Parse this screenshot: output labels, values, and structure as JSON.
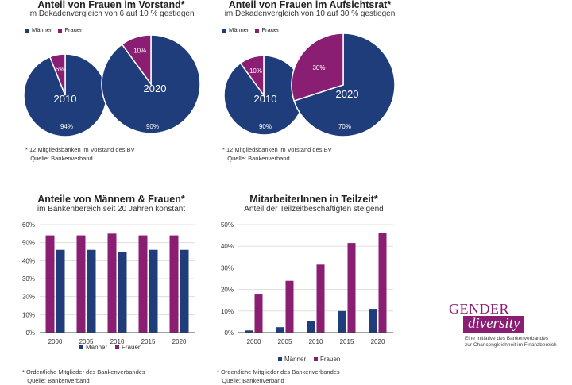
{
  "colors": {
    "maenner": "#1f3d7a",
    "frauen": "#8a1e73",
    "grid": "#d9d9d9",
    "axis": "#444444"
  },
  "chart_data": [
    {
      "type": "pie",
      "title": "Anteil von Frauen im Vorstand*",
      "subtitle": "im Dekadenvergleich von 6 auf 10 % gestiegen",
      "legend": [
        "Männer",
        "Frauen"
      ],
      "pies": [
        {
          "year": "2010",
          "values": [
            94,
            6
          ],
          "labels": [
            "94%",
            "6%"
          ]
        },
        {
          "year": "2020",
          "values": [
            90,
            10
          ],
          "labels": [
            "90%",
            "10%"
          ]
        }
      ],
      "note": "* 12 Mitgliedsbanken im Vorstand des BV\n   Quelle: Bankenverband"
    },
    {
      "type": "pie",
      "title": "Anteil von Frauen im Aufsichtsrat*",
      "subtitle": "im Dekadenvergleich von 10 auf 30 % gestiegen",
      "legend": [
        "Männer",
        "Frauen"
      ],
      "pies": [
        {
          "year": "2010",
          "values": [
            90,
            10
          ],
          "labels": [
            "90%",
            "10%"
          ]
        },
        {
          "year": "2020",
          "values": [
            70,
            30
          ],
          "labels": [
            "70%",
            "30%"
          ]
        }
      ],
      "note": "* 12 Mitgliedsbanken im Vorstand des BV\n   Quelle: Bankenverband"
    },
    {
      "type": "bar",
      "title": "Anteile von Männern & Frauen*",
      "subtitle": "im Bankenbereich  seit 20 Jahren konstant",
      "categories": [
        "2000",
        "2005",
        "2010",
        "2015",
        "2020"
      ],
      "series": [
        {
          "name": "Frauen",
          "values": [
            54,
            54,
            55,
            54,
            54
          ]
        },
        {
          "name": "Männer",
          "values": [
            46,
            46,
            45,
            46,
            46
          ]
        }
      ],
      "yticks": [
        "0%",
        "10%",
        "20%",
        "30%",
        "40%",
        "50%",
        "60%"
      ],
      "ylim": [
        0,
        60
      ],
      "note": "* Ordentliche Mitglieder des Bankenverbandes\n   Quelle: Bankenverband"
    },
    {
      "type": "bar",
      "title": "MitarbeiterInnen in Teilzeit*",
      "subtitle": "Anteil der Teilzeitbeschäftigten  steigend",
      "categories": [
        "2000",
        "2005",
        "2010",
        "2015",
        "2020"
      ],
      "series": [
        {
          "name": "Männer",
          "values": [
            1,
            2.5,
            5.5,
            10,
            11
          ]
        },
        {
          "name": "Frauen",
          "values": [
            18,
            24,
            31.5,
            41.5,
            46
          ]
        }
      ],
      "yticks": [
        "0%",
        "10%",
        "20%",
        "30%",
        "40%",
        "50%"
      ],
      "ylim": [
        0,
        50
      ],
      "note": "* Ordentliche Mitglieder des Bankenverbandes\n   Quelle: Bankenverband"
    }
  ],
  "logo": {
    "line1": "GENDER",
    "line2": "diversity",
    "tagline": "Eine Initiative des Bankenverbandes\nzur Chancengleichheit im Finanzbereich"
  }
}
